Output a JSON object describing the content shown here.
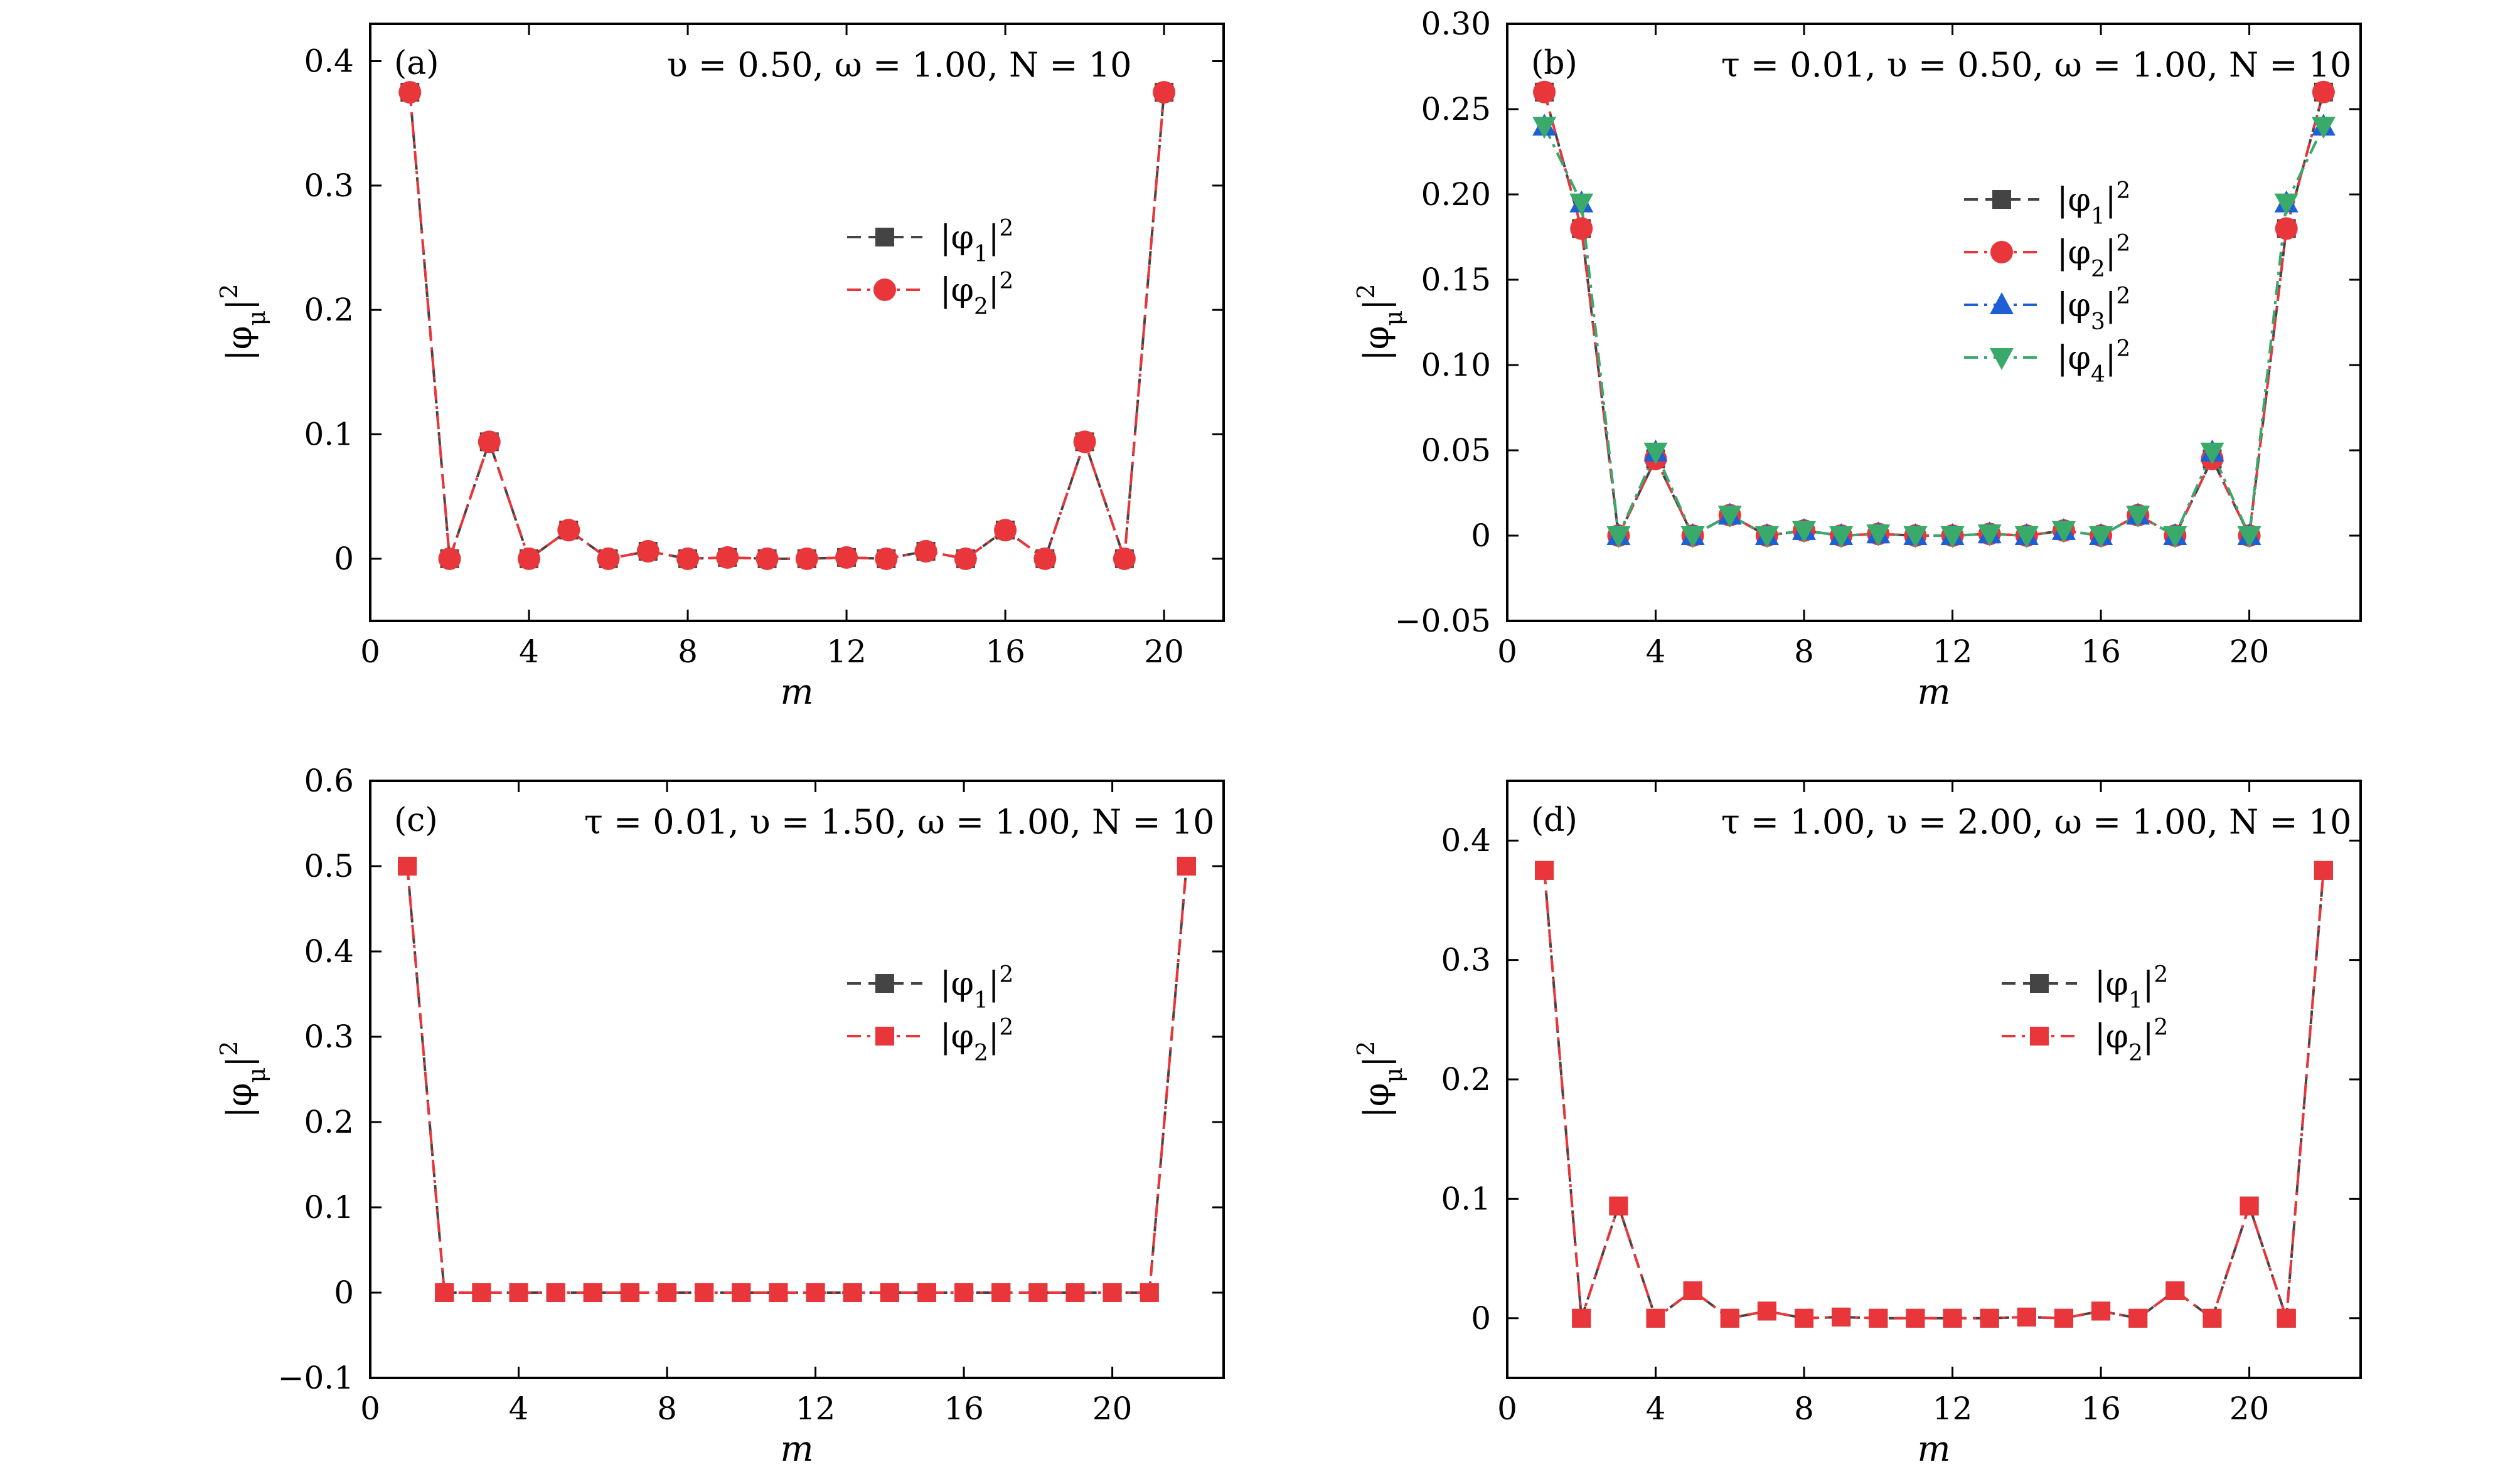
{
  "chart_data": [
    {
      "type": "line",
      "panel_label": "(a)",
      "title": "υ = 0.50,  ω = 1.00,  N = 10",
      "xlabel": "m",
      "ylabel": "|φμ|²",
      "xlim": [
        0,
        21.5
      ],
      "ylim": [
        -0.05,
        0.43
      ],
      "xticks": [
        0,
        4,
        8,
        12,
        16,
        20
      ],
      "yticks": [
        0,
        0.1,
        0.2,
        0.3,
        0.4
      ],
      "ytick_labels": [
        "0",
        "0.1",
        "0.2",
        "0.3",
        "0.4"
      ],
      "legend_position": "center-right",
      "x": [
        1,
        2,
        3,
        4,
        5,
        6,
        7,
        8,
        9,
        10,
        11,
        12,
        13,
        14,
        15,
        16,
        17,
        18,
        19,
        20
      ],
      "series": [
        {
          "name": "|φ1|²",
          "color": "#444444",
          "marker": "square",
          "dash": "dash",
          "values": [
            0.375,
            0,
            0.094,
            0,
            0.023,
            0,
            0.006,
            0,
            0.001,
            0,
            0,
            0.001,
            0,
            0.006,
            0,
            0.023,
            0,
            0.094,
            0,
            0.375
          ]
        },
        {
          "name": "|φ2|²",
          "color": "#e8363a",
          "marker": "circle",
          "dash": "dashdot",
          "values": [
            0.375,
            0,
            0.094,
            0,
            0.023,
            0,
            0.006,
            0,
            0.001,
            0,
            0,
            0.001,
            0,
            0.006,
            0,
            0.023,
            0,
            0.094,
            0,
            0.375
          ]
        }
      ]
    },
    {
      "type": "line",
      "panel_label": "(b)",
      "title": "τ = 0.01,  υ = 0.50,  ω = 1.00,  N = 10",
      "xlabel": "m",
      "ylabel": "|φμ|²",
      "xlim": [
        0,
        23
      ],
      "ylim": [
        -0.05,
        0.3
      ],
      "xticks": [
        0,
        4,
        8,
        12,
        16,
        20
      ],
      "yticks": [
        -0.05,
        0,
        0.05,
        0.1,
        0.15,
        0.2,
        0.25,
        0.3
      ],
      "ytick_labels": [
        "−0.05",
        "0",
        "0.05",
        "0.10",
        "0.15",
        "0.20",
        "0.25",
        "0.30"
      ],
      "legend_position": "center-right",
      "x": [
        1,
        2,
        3,
        4,
        5,
        6,
        7,
        8,
        9,
        10,
        11,
        12,
        13,
        14,
        15,
        16,
        17,
        18,
        19,
        20,
        21,
        22
      ],
      "series": [
        {
          "name": "|φ1|²",
          "color": "#444444",
          "marker": "square",
          "dash": "dash",
          "values": [
            0.26,
            0.18,
            0,
            0.045,
            0,
            0.012,
            0,
            0.003,
            0,
            0.001,
            0,
            0,
            0.001,
            0,
            0.003,
            0,
            0.012,
            0,
            0.045,
            0,
            0.18,
            0.26
          ]
        },
        {
          "name": "|φ2|²",
          "color": "#e8363a",
          "marker": "circle",
          "dash": "dashdot",
          "values": [
            0.26,
            0.18,
            0,
            0.045,
            0,
            0.012,
            0,
            0.003,
            0,
            0.001,
            0,
            0,
            0.001,
            0,
            0.003,
            0,
            0.012,
            0,
            0.045,
            0,
            0.18,
            0.26
          ]
        },
        {
          "name": "|φ3|²",
          "color": "#1f5fd6",
          "marker": "triangle-up",
          "dash": "dashdot",
          "values": [
            0.24,
            0.195,
            0,
            0.049,
            0,
            0.012,
            0,
            0.003,
            0,
            0.001,
            0,
            0,
            0.001,
            0,
            0.003,
            0,
            0.012,
            0,
            0.049,
            0,
            0.195,
            0.24
          ]
        },
        {
          "name": "|φ4|²",
          "color": "#3aaa6a",
          "marker": "triangle-down",
          "dash": "dashdot",
          "values": [
            0.24,
            0.195,
            0,
            0.049,
            0,
            0.012,
            0,
            0.003,
            0,
            0.001,
            0,
            0,
            0.001,
            0,
            0.003,
            0,
            0.012,
            0,
            0.049,
            0,
            0.195,
            0.24
          ]
        }
      ]
    },
    {
      "type": "line",
      "panel_label": "(c)",
      "title": "τ = 0.01,  υ = 1.50,  ω = 1.00,  N = 10",
      "xlabel": "m",
      "ylabel": "|φμ|²",
      "xlim": [
        0,
        23
      ],
      "ylim": [
        -0.1,
        0.6
      ],
      "xticks": [
        0,
        4,
        8,
        12,
        16,
        20
      ],
      "yticks": [
        -0.1,
        0,
        0.1,
        0.2,
        0.3,
        0.4,
        0.5,
        0.6
      ],
      "ytick_labels": [
        "−0.1",
        "0",
        "0.1",
        "0.2",
        "0.3",
        "0.4",
        "0.5",
        "0.6"
      ],
      "legend_position": "center-right",
      "x": [
        1,
        2,
        3,
        4,
        5,
        6,
        7,
        8,
        9,
        10,
        11,
        12,
        13,
        14,
        15,
        16,
        17,
        18,
        19,
        20,
        21,
        22
      ],
      "series": [
        {
          "name": "|φ1|²",
          "color": "#444444",
          "marker": "square",
          "dash": "dash",
          "values": [
            0.5,
            0,
            0,
            0,
            0,
            0,
            0,
            0,
            0,
            0,
            0,
            0,
            0,
            0,
            0,
            0,
            0,
            0,
            0,
            0,
            0,
            0.5
          ]
        },
        {
          "name": "|φ2|²",
          "color": "#e8363a",
          "marker": "square-overlay",
          "dash": "dashdot",
          "values": [
            0.5,
            0,
            0,
            0,
            0,
            0,
            0,
            0,
            0,
            0,
            0,
            0,
            0,
            0,
            0,
            0,
            0,
            0,
            0,
            0,
            0,
            0.5
          ]
        }
      ]
    },
    {
      "type": "line",
      "panel_label": "(d)",
      "title": "τ = 1.00,  υ = 2.00,  ω = 1.00,  N = 10",
      "xlabel": "m",
      "ylabel": "|φμ|²",
      "xlim": [
        0,
        23
      ],
      "ylim": [
        -0.05,
        0.45
      ],
      "xticks": [
        0,
        4,
        8,
        12,
        16,
        20
      ],
      "yticks": [
        0,
        0.1,
        0.2,
        0.3,
        0.4
      ],
      "ytick_labels": [
        "0",
        "0.1",
        "0.2",
        "0.3",
        "0.4"
      ],
      "legend_position": "center-right",
      "x": [
        1,
        2,
        3,
        4,
        5,
        6,
        7,
        8,
        9,
        10,
        11,
        12,
        13,
        14,
        15,
        16,
        17,
        18,
        19,
        20,
        21,
        22
      ],
      "series": [
        {
          "name": "|φ1|²",
          "color": "#444444",
          "marker": "square",
          "dash": "dash",
          "values": [
            0.375,
            0,
            0.094,
            0,
            0.023,
            0,
            0.006,
            0,
            0.001,
            0,
            0,
            0,
            0,
            0.001,
            0,
            0.006,
            0,
            0.023,
            0,
            0.094,
            0,
            0.375
          ]
        },
        {
          "name": "|φ2|²",
          "color": "#e8363a",
          "marker": "square-overlay",
          "dash": "dashdot",
          "values": [
            0.375,
            0,
            0.094,
            0,
            0.023,
            0,
            0.006,
            0,
            0.001,
            0,
            0,
            0,
            0,
            0.001,
            0,
            0.006,
            0,
            0.023,
            0,
            0.094,
            0,
            0.375
          ]
        }
      ]
    }
  ]
}
